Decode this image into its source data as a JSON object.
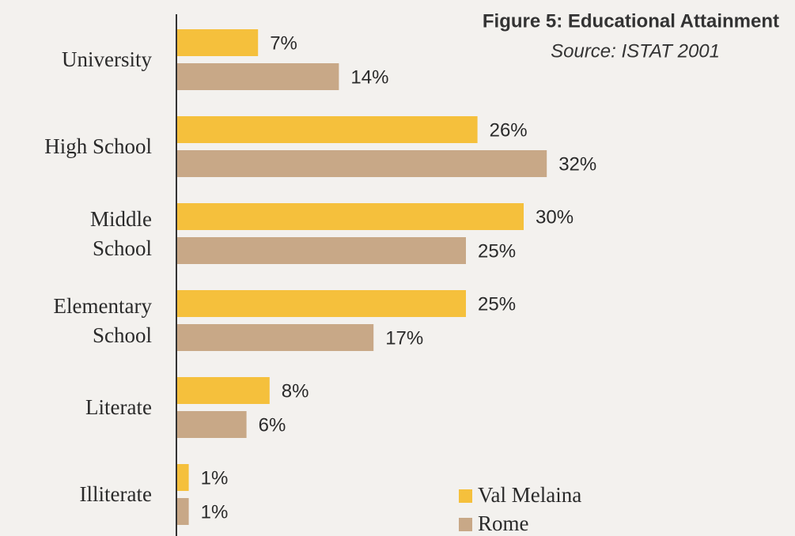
{
  "chart_data": {
    "type": "bar",
    "orientation": "horizontal",
    "title": "Figure 5: Educational Attainment",
    "subtitle": "Source: ISTAT 2001",
    "categories": [
      "University",
      "High School",
      "Middle\nSchool",
      "Elementary\nSchool",
      "Literate",
      "Illiterate"
    ],
    "series": [
      {
        "name": "Val Melaina",
        "color": "#f5c03c",
        "values": [
          7,
          26,
          30,
          25,
          8,
          1
        ],
        "value_labels": [
          "7%",
          "26%",
          "30%",
          "25%",
          "8%",
          "1%"
        ]
      },
      {
        "name": "Rome",
        "color": "#c8a887",
        "values": [
          14,
          32,
          25,
          17,
          6,
          1
        ],
        "value_labels": [
          "14%",
          "32%",
          "25%",
          "17%",
          "6%",
          "1%"
        ]
      }
    ],
    "xlim": [
      0,
      50
    ],
    "legend": "lower right"
  }
}
